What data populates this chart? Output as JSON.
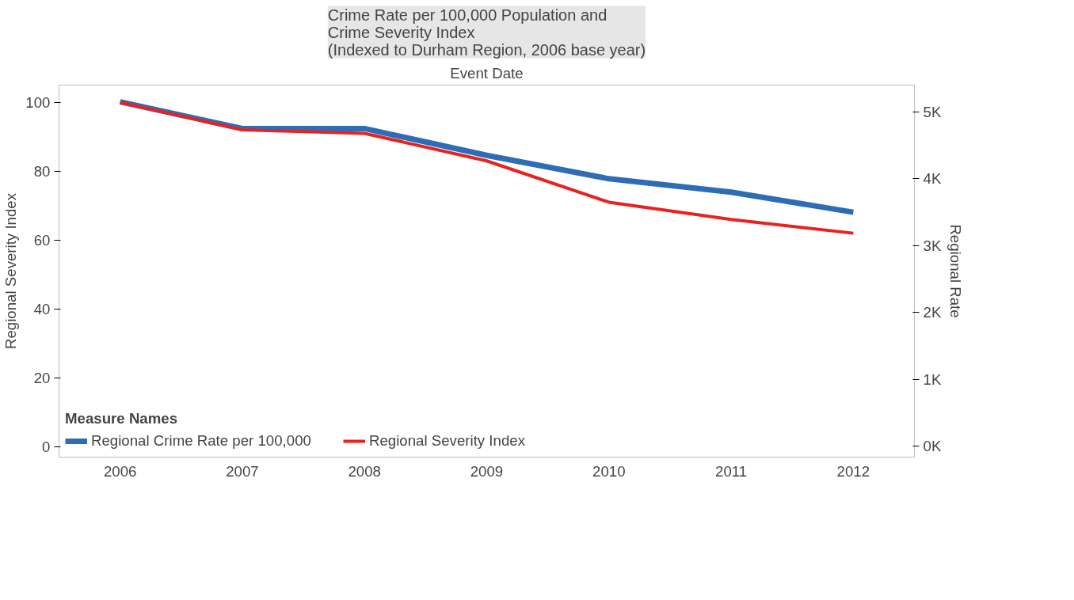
{
  "chart_data": {
    "type": "line",
    "title": "Crime Rate per 100,000 Population and\nCrime Severity Index\n(Indexed to Durham Region, 2006 base year)",
    "xlabel": "Event Date",
    "ylabel": "Regional Severity Index",
    "y2label": "Regional Rate",
    "legend_title": "Measure Names",
    "categories": [
      "2006",
      "2007",
      "2008",
      "2009",
      "2010",
      "2011",
      "2012"
    ],
    "ylim": [
      -3,
      105
    ],
    "yticks": [
      0,
      20,
      40,
      60,
      80,
      100
    ],
    "y2lim": [
      -160,
      5400
    ],
    "y2ticks": [
      {
        "value": 0,
        "label": "0K"
      },
      {
        "value": 1000,
        "label": "1K"
      },
      {
        "value": 2000,
        "label": "2K"
      },
      {
        "value": 3000,
        "label": "3K"
      },
      {
        "value": 4000,
        "label": "4K"
      },
      {
        "value": 5000,
        "label": "5K"
      }
    ],
    "series": [
      {
        "name": "Regional Crime Rate per 100,000",
        "color": "#2e6db5",
        "axis": "y2",
        "values": [
          5150,
          4750,
          4750,
          4350,
          4000,
          3800,
          3500
        ]
      },
      {
        "name": "Regional Severity Index",
        "color": "#e8231f",
        "values": [
          100,
          92,
          91,
          83,
          71,
          66,
          62
        ]
      }
    ],
    "grid": false,
    "legend": "bottom left",
    "line_style": "solid",
    "marker": "none"
  }
}
